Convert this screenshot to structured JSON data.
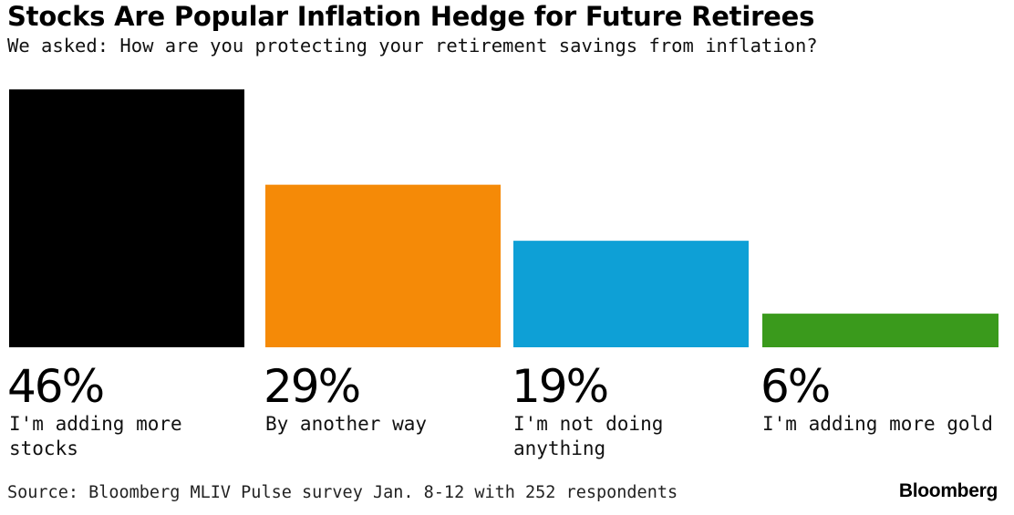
{
  "chart_data": {
    "type": "bar",
    "title": "Stocks Are Popular Inflation Hedge for Future Retirees",
    "subtitle": "We asked: How are you protecting your retirement savings from inflation?",
    "categories": [
      [
        "I'm adding more",
        "stocks"
      ],
      [
        "By another way"
      ],
      [
        "I'm not doing",
        "anything"
      ],
      [
        "I'm adding more gold"
      ]
    ],
    "values": [
      46,
      29,
      19,
      6
    ],
    "value_labels": [
      "46%",
      "29%",
      "19%",
      "6%"
    ],
    "colors": [
      "#000000",
      "#f58a07",
      "#0ea0d6",
      "#3a9a1c"
    ],
    "unit": "%",
    "grid": false,
    "legend": "none",
    "xlabel": "",
    "ylabel": ""
  },
  "footer": {
    "source": "Source: Bloomberg MLIV Pulse survey Jan. 8-12 with 252 respondents",
    "logo": "Bloomberg"
  }
}
